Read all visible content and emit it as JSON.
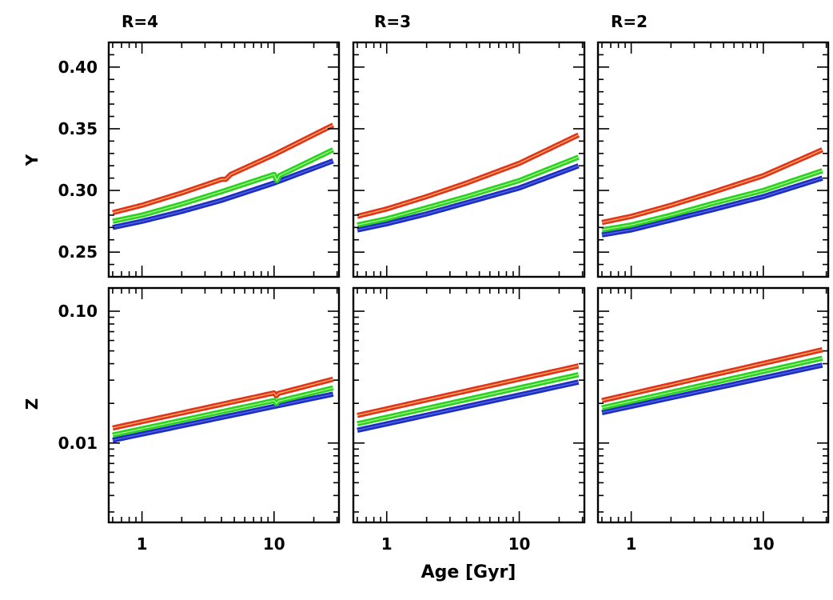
{
  "chart_data": {
    "type": "line",
    "panel_titles": [
      "R=4",
      "R=3",
      "R=2"
    ],
    "xlabel": "Age [Gyr]",
    "xscale": "log",
    "xlim": [
      0.56,
      31
    ],
    "x_ticklabels": [
      "1",
      "10"
    ],
    "rows": [
      {
        "ylabel": "Y",
        "yscale": "linear",
        "ylim": [
          0.23,
          0.42
        ],
        "y_ticklabels": [
          "0.25",
          "0.30",
          "0.35",
          "0.40"
        ]
      },
      {
        "ylabel": "Z",
        "yscale": "log",
        "ylim": [
          0.0025,
          0.15
        ],
        "y_ticklabels": [
          "0.01",
          "0.10"
        ]
      }
    ],
    "series_colors": [
      "#1c2fc2",
      "#2ad31d",
      "#e2341c"
    ],
    "panels": [
      {
        "row": 0,
        "col": 0,
        "title": "R=4",
        "series": [
          {
            "color": "#1c2fc2",
            "x": [
              0.6,
              1,
              2,
              4,
              10,
              28
            ],
            "y": [
              0.27,
              0.275,
              0.283,
              0.292,
              0.306,
              0.324
            ]
          },
          {
            "color": "#2ad31d",
            "x": [
              0.6,
              1,
              2,
              4,
              10,
              10.5,
              11,
              28
            ],
            "y": [
              0.275,
              0.28,
              0.289,
              0.299,
              0.313,
              0.308,
              0.312,
              0.333
            ]
          },
          {
            "color": "#e2341c",
            "x": [
              0.6,
              1,
              2,
              4,
              4.3,
              4.7,
              10,
              28
            ],
            "y": [
              0.282,
              0.288,
              0.298,
              0.309,
              0.309,
              0.313,
              0.329,
              0.353
            ]
          }
        ]
      },
      {
        "row": 0,
        "col": 1,
        "title": "R=3",
        "series": [
          {
            "color": "#1c2fc2",
            "x": [
              0.6,
              1,
              2,
              4,
              10,
              28
            ],
            "y": [
              0.268,
              0.273,
              0.281,
              0.29,
              0.302,
              0.32
            ]
          },
          {
            "color": "#2ad31d",
            "x": [
              0.6,
              1,
              2,
              4,
              10,
              28
            ],
            "y": [
              0.272,
              0.277,
              0.286,
              0.295,
              0.308,
              0.327
            ]
          },
          {
            "color": "#e2341c",
            "x": [
              0.6,
              1,
              2,
              4,
              10,
              28
            ],
            "y": [
              0.279,
              0.285,
              0.295,
              0.306,
              0.322,
              0.345
            ]
          }
        ]
      },
      {
        "row": 0,
        "col": 2,
        "title": "R=2",
        "series": [
          {
            "color": "#1c2fc2",
            "x": [
              0.6,
              1,
              2,
              4,
              10,
              28
            ],
            "y": [
              0.264,
              0.268,
              0.276,
              0.284,
              0.295,
              0.31
            ]
          },
          {
            "color": "#2ad31d",
            "x": [
              0.6,
              1,
              2,
              4,
              10,
              28
            ],
            "y": [
              0.268,
              0.272,
              0.28,
              0.289,
              0.3,
              0.316
            ]
          },
          {
            "color": "#e2341c",
            "x": [
              0.6,
              1,
              2,
              4,
              10,
              28
            ],
            "y": [
              0.274,
              0.279,
              0.288,
              0.298,
              0.312,
              0.333
            ]
          }
        ]
      },
      {
        "row": 1,
        "col": 0,
        "title": "R=4",
        "series": [
          {
            "color": "#1c2fc2",
            "x": [
              0.6,
              28
            ],
            "y": [
              0.0105,
              0.0235
            ]
          },
          {
            "color": "#2ad31d",
            "x": [
              0.6,
              10,
              10.4,
              10.8,
              28
            ],
            "y": [
              0.0115,
              0.021,
              0.02,
              0.0208,
              0.0262
            ]
          },
          {
            "color": "#e2341c",
            "x": [
              0.6,
              10,
              10.4,
              10.8,
              28
            ],
            "y": [
              0.013,
              0.024,
              0.0228,
              0.0238,
              0.0305
            ]
          }
        ]
      },
      {
        "row": 1,
        "col": 1,
        "title": "R=3",
        "series": [
          {
            "color": "#1c2fc2",
            "x": [
              0.6,
              28
            ],
            "y": [
              0.0125,
              0.029
            ]
          },
          {
            "color": "#2ad31d",
            "x": [
              0.6,
              28
            ],
            "y": [
              0.014,
              0.033
            ]
          },
          {
            "color": "#e2341c",
            "x": [
              0.6,
              28
            ],
            "y": [
              0.0162,
              0.0385
            ]
          }
        ]
      },
      {
        "row": 1,
        "col": 2,
        "title": "R=2",
        "series": [
          {
            "color": "#1c2fc2",
            "x": [
              0.6,
              28
            ],
            "y": [
              0.017,
              0.039
            ]
          },
          {
            "color": "#2ad31d",
            "x": [
              0.6,
              28
            ],
            "y": [
              0.0185,
              0.044
            ]
          },
          {
            "color": "#e2341c",
            "x": [
              0.6,
              28
            ],
            "y": [
              0.021,
              0.051
            ]
          }
        ]
      }
    ]
  }
}
